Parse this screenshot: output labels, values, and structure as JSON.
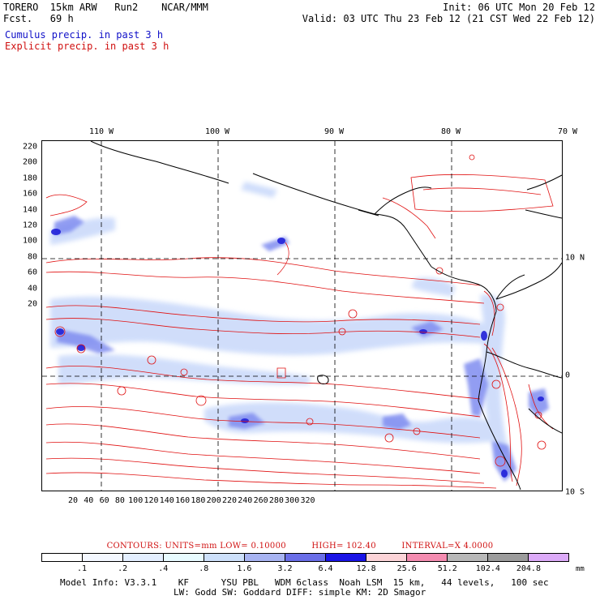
{
  "header": {
    "model_line": "TORERO  15km ARW   Run2    NCAR/MMM",
    "fcst_line": "Fcst.   69 h",
    "init_line": "Init: 06 UTC Mon 20 Feb 12",
    "valid_line": "Valid: 03 UTC Thu 23 Feb 12 (21 CST Wed 22 Feb 12)"
  },
  "legend": {
    "cumulus": "Cumulus precip. in past 3 h",
    "explicit": "Explicit precip. in past 3 h"
  },
  "map": {
    "lon_labels": [
      "110 W",
      "100 W",
      "90 W",
      "80 W",
      "70 W"
    ],
    "lat_labels": [
      "10 N",
      "0",
      "10 S"
    ],
    "y_ticks": [
      "220",
      "200",
      "180",
      "160",
      "140",
      "120",
      "100",
      "80",
      "60",
      "40",
      "20"
    ],
    "x_ticks": [
      "20",
      "40",
      "60",
      "80",
      "100",
      "120",
      "140",
      "160",
      "180",
      "200",
      "220",
      "240",
      "260",
      "280",
      "300",
      "320"
    ],
    "colors": {
      "coast": "#000000",
      "grid": "#000000",
      "contour": "#e01010",
      "precip_light": "#c8d8fa",
      "precip_mid": "#7f8cf0",
      "precip_heavy": "#2020d8"
    }
  },
  "contour_info": {
    "units": "CONTOURS:  UNITS=mm  LOW= 0.10000",
    "high": "HIGH=  102.40",
    "interval": "INTERVAL=X  4.0000"
  },
  "colorbar": {
    "labels": [
      ".1",
      ".2",
      ".4",
      ".8",
      "1.6",
      "3.2",
      "6.4",
      "12.8",
      "25.6",
      "51.2",
      "102.4",
      "204.8"
    ],
    "unit": "mm",
    "colors": [
      "#ffffff",
      "#f4f8ff",
      "#e4efff",
      "#e8fbff",
      "#cde0fa",
      "#a8b4f2",
      "#6a6ee8",
      "#1a14e6",
      "#fcd4d8",
      "#f48cb0",
      "#b8b8b8",
      "#9c9c9c",
      "#dcaaf8"
    ]
  },
  "footer": {
    "line1": "Model Info: V3.3.1    KF      YSU PBL   WDM 6class  Noah LSM  15 km,   44 levels,   100 sec",
    "line2": "LW: Godd SW: Goddard DIFF: simple KM: 2D Smagor"
  }
}
